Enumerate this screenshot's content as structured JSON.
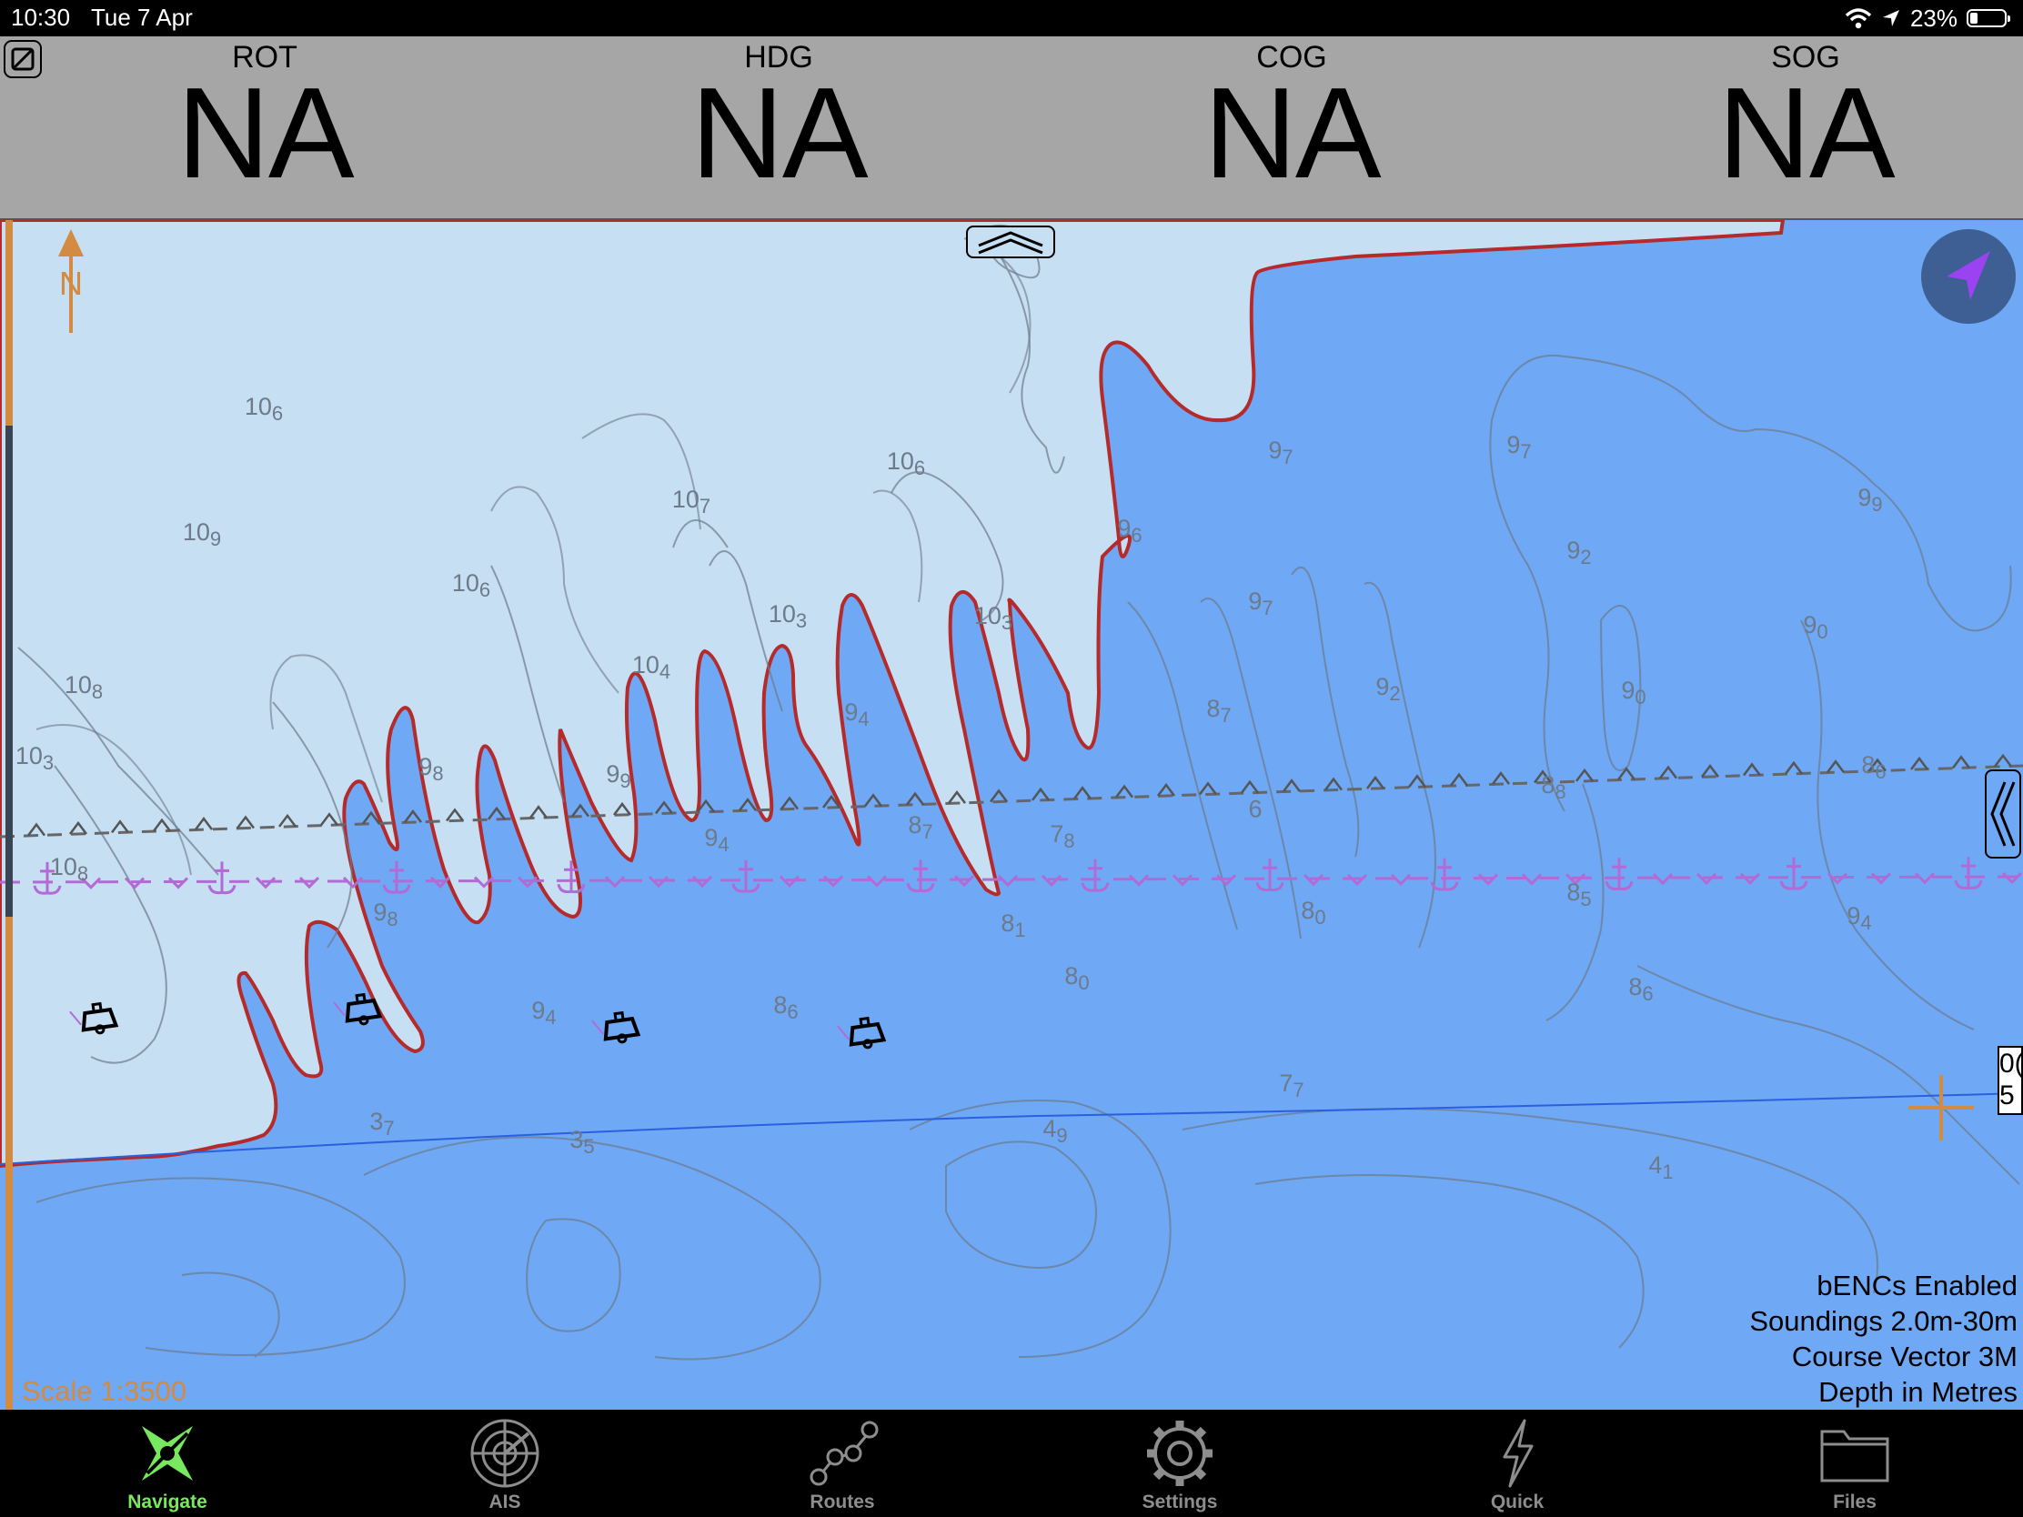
{
  "status_bar": {
    "time": "10:30",
    "date": "Tue 7 Apr",
    "battery": "23%",
    "battery_level": 0.23
  },
  "instruments": [
    {
      "label": "ROT",
      "value": "NA"
    },
    {
      "label": "HDG",
      "value": "NA"
    },
    {
      "label": "COG",
      "value": "NA"
    },
    {
      "label": "SOG",
      "value": "NA"
    }
  ],
  "chart": {
    "north_label": "N",
    "scale": "Scale 1:3500",
    "legend": [
      "bENCs Enabled",
      "Soundings 2.0m-30m",
      "Course Vector 3M",
      "Depth in Metres"
    ],
    "cursor_readout": [
      "0(",
      "5"
    ],
    "colors": {
      "shallow": "#c7dff2",
      "deep": "#6fa8f5",
      "depth_contour": "#b52a2a",
      "contour": "#6c7a8a",
      "anchorage": "#b26bd4",
      "course": "#2a5fe0",
      "accent": "#d38a41"
    },
    "soundings": [
      {
        "v": "10",
        "s": "6"
      },
      {
        "v": "10",
        "s": "6"
      },
      {
        "v": "10",
        "s": "7"
      },
      {
        "v": "10",
        "s": "9"
      },
      {
        "v": "10",
        "s": "6"
      },
      {
        "v": "10",
        "s": "3"
      },
      {
        "v": "10",
        "s": "3"
      },
      {
        "v": "10",
        "s": "4"
      },
      {
        "v": "10",
        "s": "8"
      },
      {
        "v": "10",
        "s": "3"
      },
      {
        "v": "9",
        "s": "8"
      },
      {
        "v": "9",
        "s": "9"
      },
      {
        "v": "9",
        "s": "4"
      },
      {
        "v": "9",
        "s": "4"
      },
      {
        "v": "10",
        "s": "8"
      },
      {
        "v": "9",
        "s": "8"
      },
      {
        "v": "9",
        "s": "4"
      },
      {
        "v": "8",
        "s": "6"
      },
      {
        "v": "8",
        "s": "7"
      },
      {
        "v": "7",
        "s": "8"
      },
      {
        "v": "8",
        "s": "1"
      },
      {
        "v": "8",
        "s": "0"
      },
      {
        "v": "9",
        "s": "6"
      },
      {
        "v": "9",
        "s": "7"
      },
      {
        "v": "9",
        "s": "7"
      },
      {
        "v": "9",
        "s": "7"
      },
      {
        "v": "9",
        "s": "2"
      },
      {
        "v": "9",
        "s": "9"
      },
      {
        "v": "9",
        "s": "0"
      },
      {
        "v": "9",
        "s": "2"
      },
      {
        "v": "9",
        "s": "0"
      },
      {
        "v": "8",
        "s": "7"
      },
      {
        "v": "8",
        "s": "8"
      },
      {
        "v": "8",
        "s": "6"
      },
      {
        "v": "6",
        "s": ""
      },
      {
        "v": "8",
        "s": "5"
      },
      {
        "v": "8",
        "s": "0"
      },
      {
        "v": "9",
        "s": "4"
      },
      {
        "v": "8",
        "s": "6"
      },
      {
        "v": "7",
        "s": "7"
      },
      {
        "v": "3",
        "s": "7"
      },
      {
        "v": "3",
        "s": "5"
      },
      {
        "v": "4",
        "s": "9"
      },
      {
        "v": "4",
        "s": "1"
      }
    ]
  },
  "tabs": [
    {
      "label": "Navigate",
      "icon": "compass-navigate-icon",
      "active": true
    },
    {
      "label": "AIS",
      "icon": "radar-icon",
      "active": false
    },
    {
      "label": "Routes",
      "icon": "route-icon",
      "active": false
    },
    {
      "label": "Settings",
      "icon": "gear-icon",
      "active": false
    },
    {
      "label": "Quick",
      "icon": "lightning-icon",
      "active": false
    },
    {
      "label": "Files",
      "icon": "folder-icon",
      "active": false
    }
  ]
}
